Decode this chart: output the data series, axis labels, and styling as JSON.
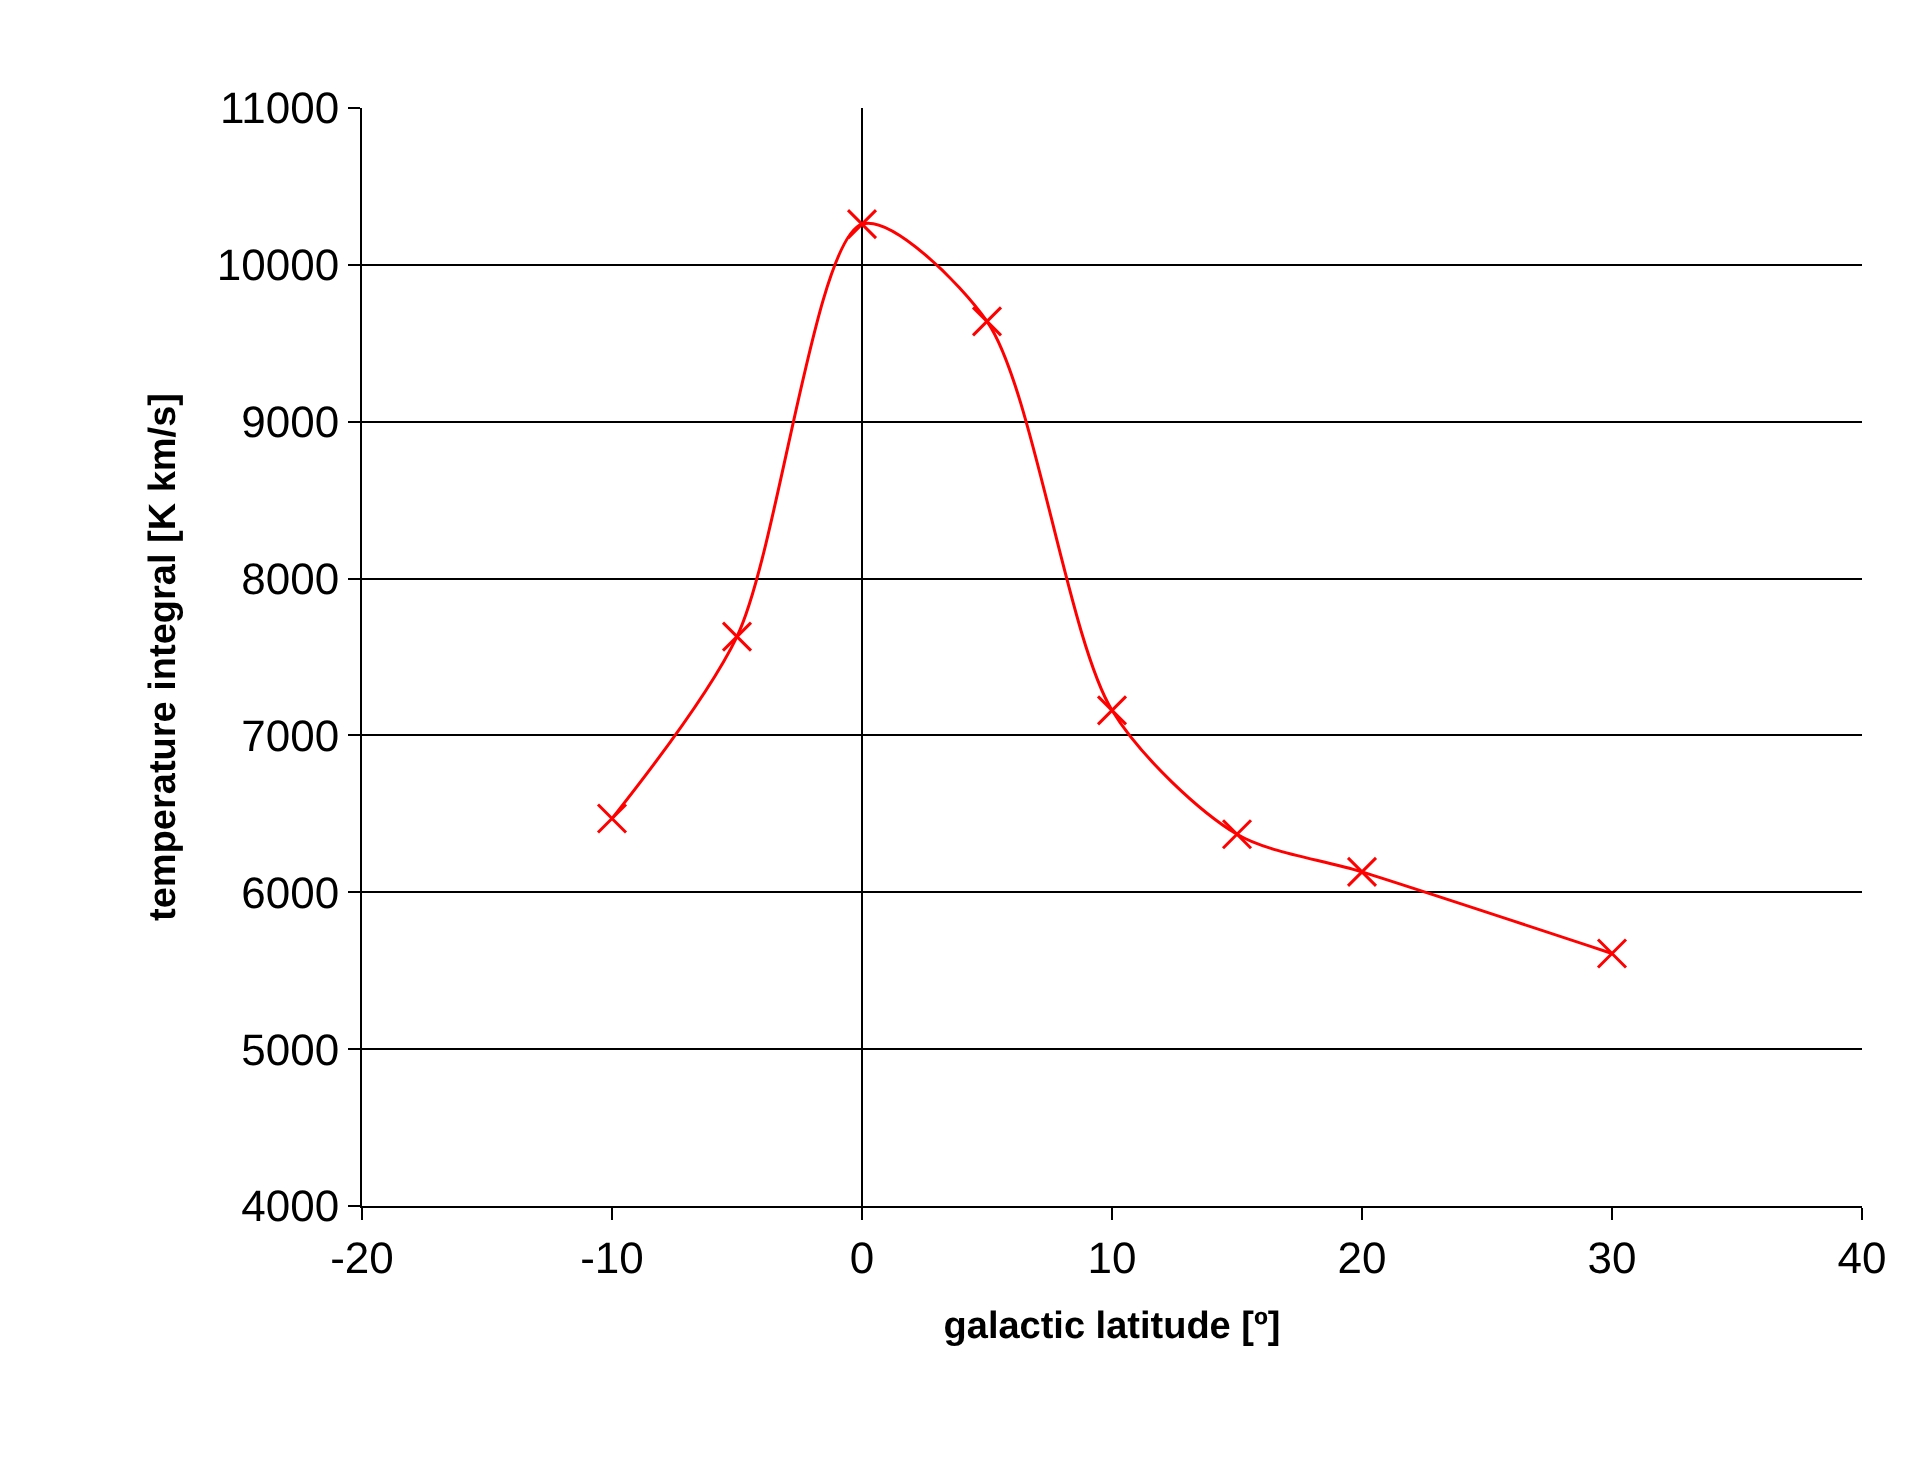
{
  "chart_data": {
    "type": "line",
    "xlabel": "galactic latitude [º]",
    "ylabel": "temperature integral [K km/s]",
    "x": [
      -10,
      -5,
      0,
      5,
      10,
      15,
      20,
      30
    ],
    "series": [
      {
        "color": "#ff0000",
        "values": [
          6470,
          7630,
          10260,
          9640,
          7160,
          6370,
          6130,
          5610
        ]
      }
    ],
    "xlim": [
      -20,
      40
    ],
    "xticks": [
      -20,
      -10,
      0,
      10,
      20,
      30,
      40
    ],
    "ylim": [
      4000,
      11000
    ],
    "yticks": [
      4000,
      5000,
      6000,
      7000,
      8000,
      9000,
      10000,
      11000
    ],
    "grid": "y",
    "marker": "cross",
    "line_style": "solid",
    "legend": false,
    "ref_lines": [
      {
        "axis": "x",
        "value": 0,
        "color": "#000000"
      }
    ]
  }
}
